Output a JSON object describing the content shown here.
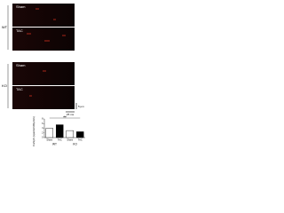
{
  "figure": {
    "groups": [
      {
        "label": "WT",
        "rows": [
          "Sham",
          "TAC"
        ]
      },
      {
        "label": "KO",
        "rows": [
          "Sham",
          "TAC"
        ]
      }
    ],
    "scale_bar": {
      "vertical": "5 μm",
      "horizontal": "25 ms"
    }
  },
  "chart_data": {
    "type": "bar",
    "ylabel": "CaSpF (sparks/100μm/s)",
    "categories": [
      "Sham",
      "TAC",
      "Sham",
      "TAC"
    ],
    "group_labels": [
      "WT",
      "KO"
    ],
    "values": [
      4,
      5.5,
      3,
      2.5
    ],
    "colors": [
      "#ffffff",
      "#000000",
      "#ffffff",
      "#000000"
    ],
    "annotations": [
      "##"
    ],
    "ylim": [
      0,
      8
    ],
    "yticks": [
      0,
      2,
      4,
      6,
      8
    ]
  }
}
